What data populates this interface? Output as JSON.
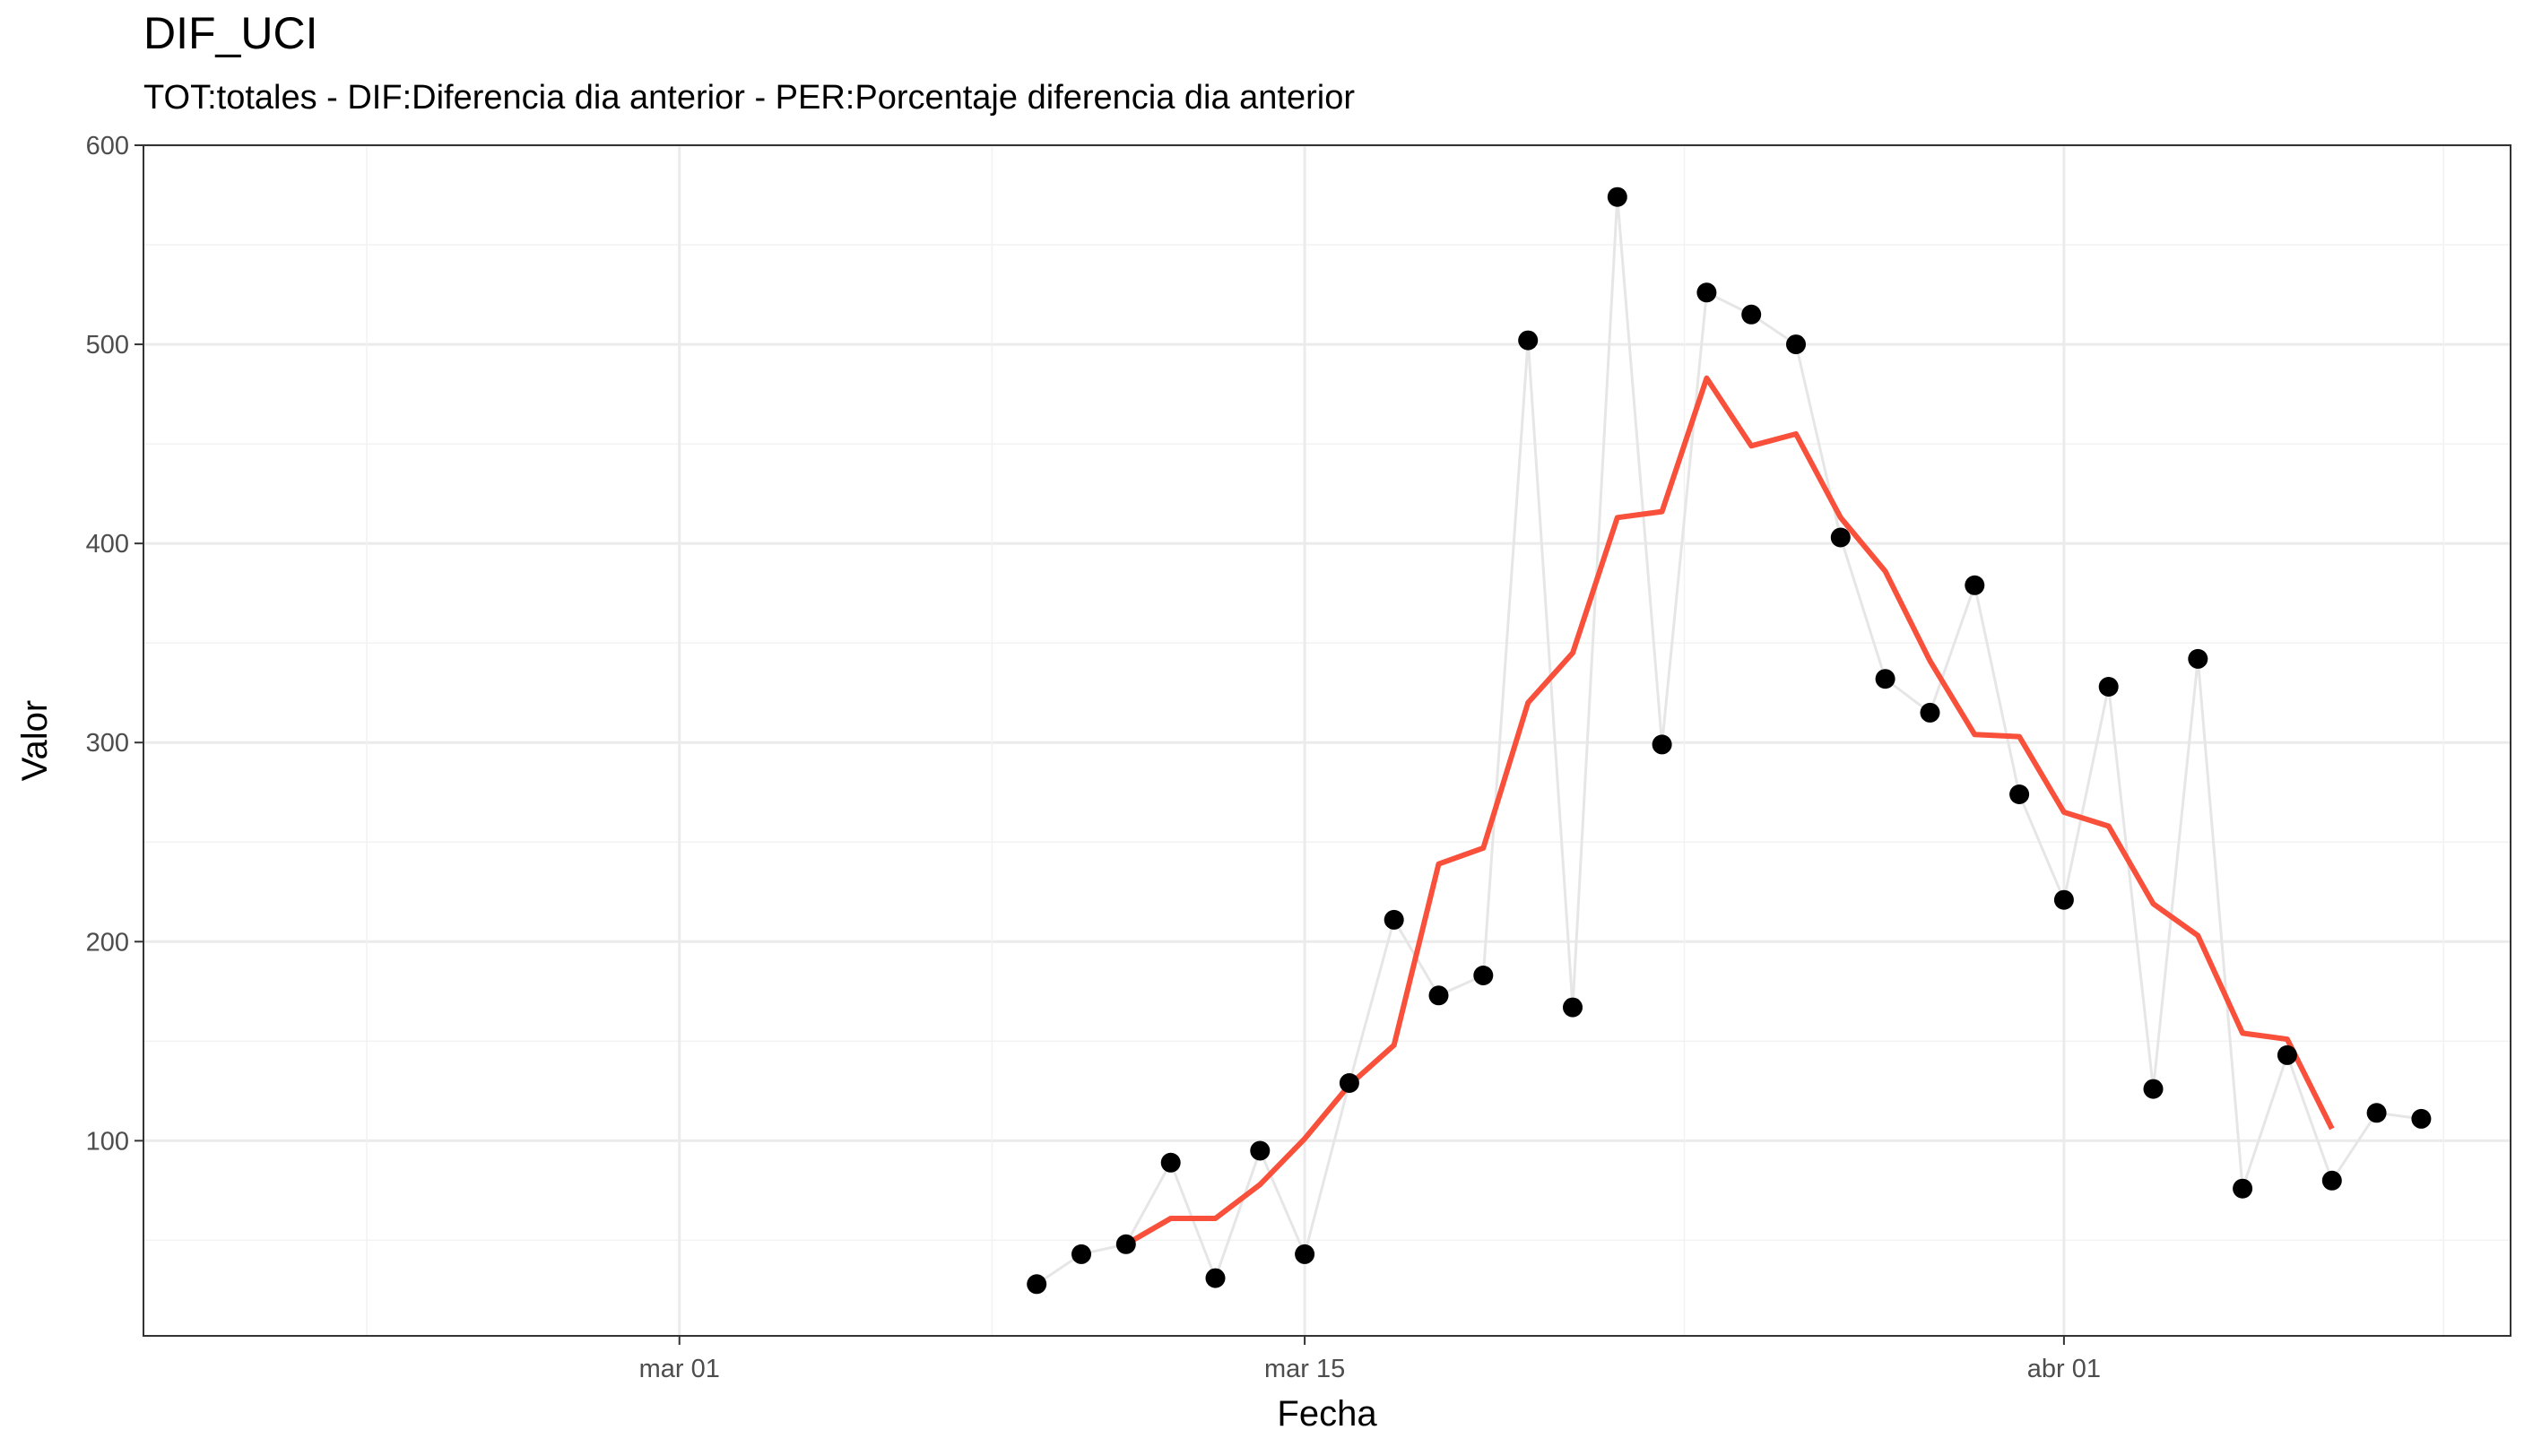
{
  "chart_data": {
    "type": "line",
    "title": "DIF_UCI",
    "subtitle": "TOT:totales - DIF:Diferencia dia anterior - PER:Porcentaje diferencia dia anterior",
    "xlabel": "Fecha",
    "ylabel": "Valor",
    "x_ticks": [
      "mar 01",
      "mar 15",
      "abr 01"
    ],
    "y_ticks": [
      100,
      200,
      300,
      400,
      500,
      600
    ],
    "xlim": [
      "2020-02-18",
      "2020-04-11"
    ],
    "ylim": [
      2,
      600
    ],
    "grid": true,
    "series": [
      {
        "style": "points connected by light grey line",
        "color": "#000000",
        "line_color": "#e6e6e6",
        "x": [
          "2020-03-09",
          "2020-03-10",
          "2020-03-11",
          "2020-03-12",
          "2020-03-13",
          "2020-03-14",
          "2020-03-15",
          "2020-03-16",
          "2020-03-17",
          "2020-03-18",
          "2020-03-19",
          "2020-03-20",
          "2020-03-21",
          "2020-03-22",
          "2020-03-23",
          "2020-03-24",
          "2020-03-25",
          "2020-03-26",
          "2020-03-27",
          "2020-03-28",
          "2020-03-29",
          "2020-03-30",
          "2020-03-31",
          "2020-04-01",
          "2020-04-02",
          "2020-04-03",
          "2020-04-04",
          "2020-04-05",
          "2020-04-06",
          "2020-04-07",
          "2020-04-08",
          "2020-04-09"
        ],
        "values": [
          28,
          43,
          48,
          89,
          31,
          95,
          43,
          129,
          211,
          173,
          183,
          502,
          167,
          574,
          299,
          526,
          515,
          500,
          403,
          332,
          315,
          379,
          274,
          221,
          328,
          126,
          342,
          76,
          143,
          80,
          114,
          111
        ]
      },
      {
        "style": "smoothed line",
        "color": "#f8503a",
        "x": [
          "2020-03-11",
          "2020-03-12",
          "2020-03-13",
          "2020-03-14",
          "2020-03-15",
          "2020-03-16",
          "2020-03-17",
          "2020-03-18",
          "2020-03-19",
          "2020-03-20",
          "2020-03-21",
          "2020-03-22",
          "2020-03-23",
          "2020-03-24",
          "2020-03-25",
          "2020-03-26",
          "2020-03-27",
          "2020-03-28",
          "2020-03-29",
          "2020-03-30",
          "2020-03-31",
          "2020-04-01",
          "2020-04-02",
          "2020-04-03",
          "2020-04-04",
          "2020-04-05",
          "2020-04-06",
          "2020-04-07"
        ],
        "values": [
          48,
          61,
          61,
          78,
          101,
          128,
          148,
          239,
          247,
          320,
          345,
          413,
          416,
          483,
          449,
          455,
          413,
          386,
          341,
          304,
          303,
          265,
          258,
          219,
          203,
          154,
          151,
          106
        ]
      }
    ]
  }
}
